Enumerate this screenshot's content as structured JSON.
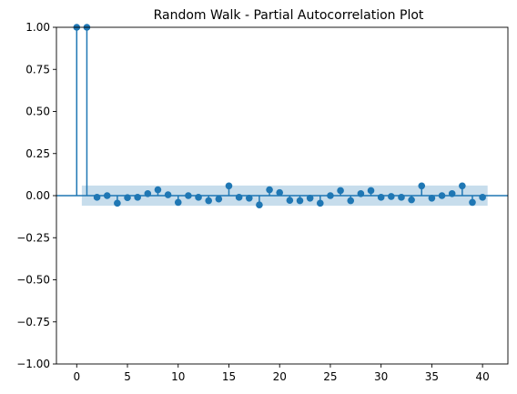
{
  "chart_data": {
    "type": "stem",
    "title": "Random Walk - Partial Autocorrelation Plot",
    "xlabel": "",
    "ylabel": "",
    "xlim": [
      -2,
      42.5
    ],
    "ylim": [
      -1.0,
      1.0
    ],
    "x_ticks": [
      0,
      5,
      10,
      15,
      20,
      25,
      30,
      35,
      40
    ],
    "y_ticks": [
      -1.0,
      -0.75,
      -0.5,
      -0.25,
      0.0,
      0.25,
      0.5,
      0.75,
      1.0
    ],
    "x_tick_labels": [
      "0",
      "5",
      "10",
      "15",
      "20",
      "25",
      "30",
      "35",
      "40"
    ],
    "y_tick_labels": [
      "−1.00",
      "−0.75",
      "−0.50",
      "−0.25",
      "0.00",
      "0.25",
      "0.50",
      "0.75",
      "1.00"
    ],
    "grid": false,
    "confidence_band": {
      "lower": -0.06,
      "upper": 0.06,
      "x_start": 0.5,
      "x_end": 40.5
    },
    "lags": [
      0,
      1,
      2,
      3,
      4,
      5,
      6,
      7,
      8,
      9,
      10,
      11,
      12,
      13,
      14,
      15,
      16,
      17,
      18,
      19,
      20,
      21,
      22,
      23,
      24,
      25,
      26,
      27,
      28,
      29,
      30,
      31,
      32,
      33,
      34,
      35,
      36,
      37,
      38,
      39,
      40
    ],
    "values": [
      1.0,
      1.0,
      -0.01,
      0.0,
      -0.045,
      -0.012,
      -0.01,
      0.012,
      0.035,
      0.005,
      -0.04,
      0.0,
      -0.01,
      -0.03,
      -0.02,
      0.058,
      -0.01,
      -0.015,
      -0.055,
      0.035,
      0.018,
      -0.028,
      -0.03,
      -0.015,
      -0.045,
      0.0,
      0.03,
      -0.03,
      0.012,
      0.03,
      -0.01,
      -0.005,
      -0.01,
      -0.025,
      0.058,
      -0.015,
      0.0,
      0.012,
      0.058,
      -0.04,
      -0.01
    ],
    "colors": {
      "marker": "#1f77b4",
      "band": "#1f77b4",
      "axes": "#000000"
    }
  }
}
